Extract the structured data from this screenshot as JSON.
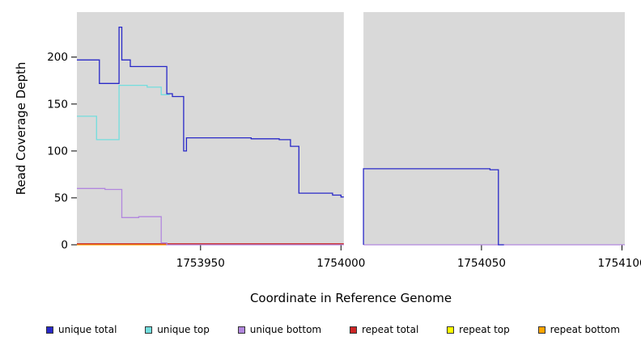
{
  "chart_data": {
    "type": "line",
    "title": "",
    "xlabel": "Coordinate in Reference Genome",
    "ylabel": "Read Coverage Depth",
    "xlim": [
      1753906,
      1754101
    ],
    "ylim": [
      0,
      248
    ],
    "xticks": [
      1753950,
      1754000,
      1754050,
      1754100
    ],
    "yticks": [
      0,
      50,
      100,
      150,
      200
    ],
    "grid": false,
    "legend_position": "bottom",
    "plot_bg": "#d9d9d9",
    "gap_band": {
      "x0": 1754001,
      "x1": 1754008
    },
    "series": [
      {
        "name": "unique total",
        "color": "#2828c8",
        "segments": [
          [
            [
              1753906,
              197
            ],
            [
              1753914,
              197
            ],
            [
              1753914,
              172
            ],
            [
              1753921,
              172
            ],
            [
              1753921,
              232
            ],
            [
              1753922,
              232
            ],
            [
              1753922,
              197
            ],
            [
              1753925,
              197
            ],
            [
              1753925,
              190
            ],
            [
              1753938,
              190
            ],
            [
              1753938,
              161
            ],
            [
              1753940,
              161
            ],
            [
              1753940,
              158
            ],
            [
              1753944,
              158
            ],
            [
              1753944,
              100
            ],
            [
              1753945,
              100
            ],
            [
              1753945,
              114
            ],
            [
              1753968,
              114
            ],
            [
              1753968,
              113
            ],
            [
              1753978,
              113
            ],
            [
              1753978,
              112
            ],
            [
              1753982,
              112
            ],
            [
              1753982,
              105
            ],
            [
              1753985,
              105
            ],
            [
              1753985,
              55
            ],
            [
              1753997,
              55
            ],
            [
              1753997,
              53
            ],
            [
              1754000,
              53
            ],
            [
              1754000,
              51
            ],
            [
              1754001,
              51
            ]
          ],
          [
            [
              1754008,
              0
            ],
            [
              1754008,
              81
            ],
            [
              1754053,
              81
            ],
            [
              1754053,
              80
            ],
            [
              1754056,
              80
            ],
            [
              1754056,
              0
            ],
            [
              1754058,
              0
            ]
          ]
        ]
      },
      {
        "name": "unique top",
        "color": "#72dede",
        "segments": [
          [
            [
              1753906,
              137
            ],
            [
              1753913,
              137
            ],
            [
              1753913,
              112
            ],
            [
              1753921,
              112
            ],
            [
              1753921,
              170
            ],
            [
              1753931,
              170
            ],
            [
              1753931,
              168
            ],
            [
              1753936,
              168
            ],
            [
              1753936,
              160
            ],
            [
              1753939,
              160
            ]
          ]
        ]
      },
      {
        "name": "unique bottom",
        "color": "#b287de",
        "segments": [
          [
            [
              1753906,
              60
            ],
            [
              1753916,
              60
            ],
            [
              1753916,
              59
            ],
            [
              1753922,
              59
            ],
            [
              1753922,
              29
            ],
            [
              1753928,
              29
            ],
            [
              1753928,
              30
            ],
            [
              1753936,
              30
            ],
            [
              1753936,
              2
            ],
            [
              1753938,
              2
            ],
            [
              1753938,
              0
            ],
            [
              1754001,
              0
            ]
          ],
          [
            [
              1754008,
              0
            ],
            [
              1754101,
              0
            ]
          ]
        ]
      },
      {
        "name": "repeat total",
        "color": "#cd2626",
        "segments": [
          [
            [
              1753906,
              1
            ],
            [
              1754001,
              1
            ]
          ]
        ]
      },
      {
        "name": "repeat top",
        "color": "#ffff00",
        "segments": []
      },
      {
        "name": "repeat bottom",
        "color": "#ffa500",
        "segments": [
          [
            [
              1753906,
              0
            ],
            [
              1753938,
              0
            ]
          ]
        ]
      }
    ]
  }
}
